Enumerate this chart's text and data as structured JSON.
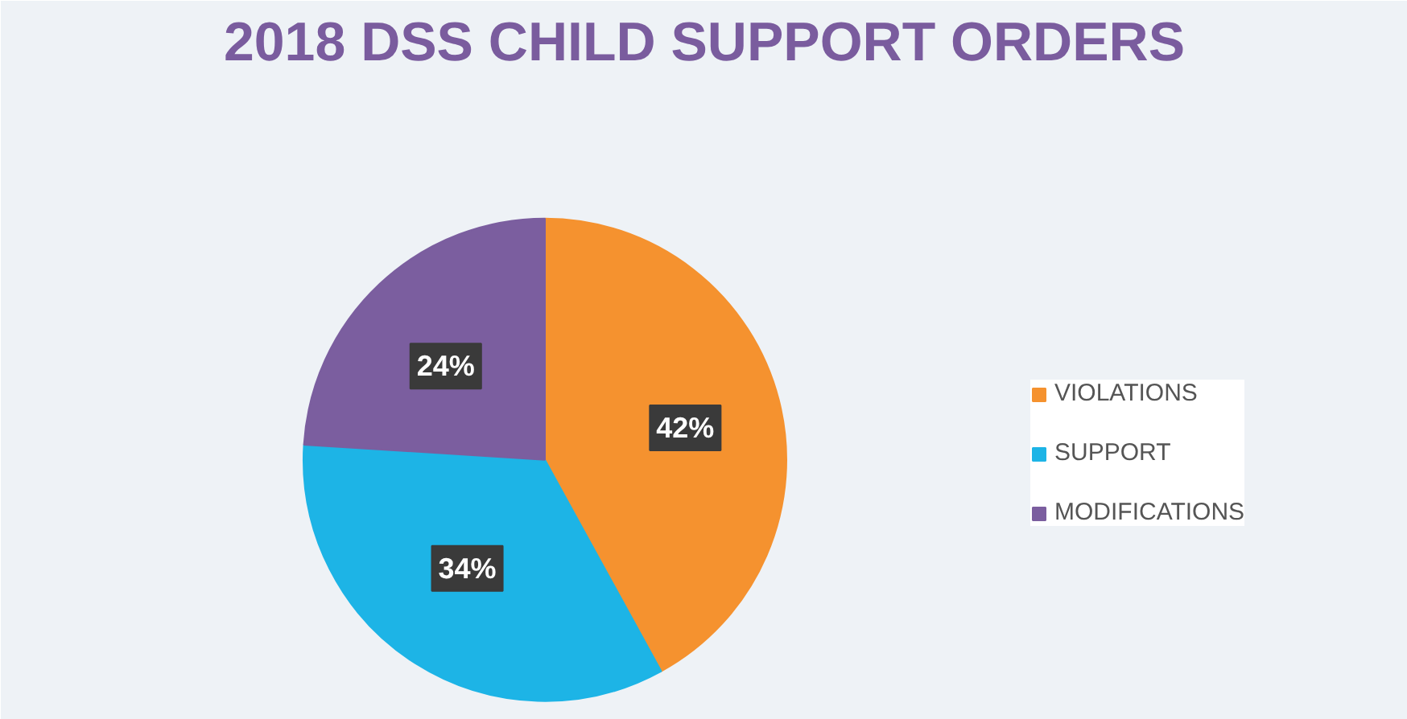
{
  "chart_data": {
    "type": "pie",
    "title": "2018 DSS CHILD SUPPORT ORDERS",
    "categories": [
      "VIOLATIONS",
      "SUPPORT",
      "MODIFICATIONS"
    ],
    "values": [
      42,
      34,
      24
    ],
    "colors": [
      "#f5922f",
      "#1db4e6",
      "#7b5e9f"
    ],
    "value_labels": [
      "42%",
      "34%",
      "24%"
    ],
    "legend": "right"
  }
}
